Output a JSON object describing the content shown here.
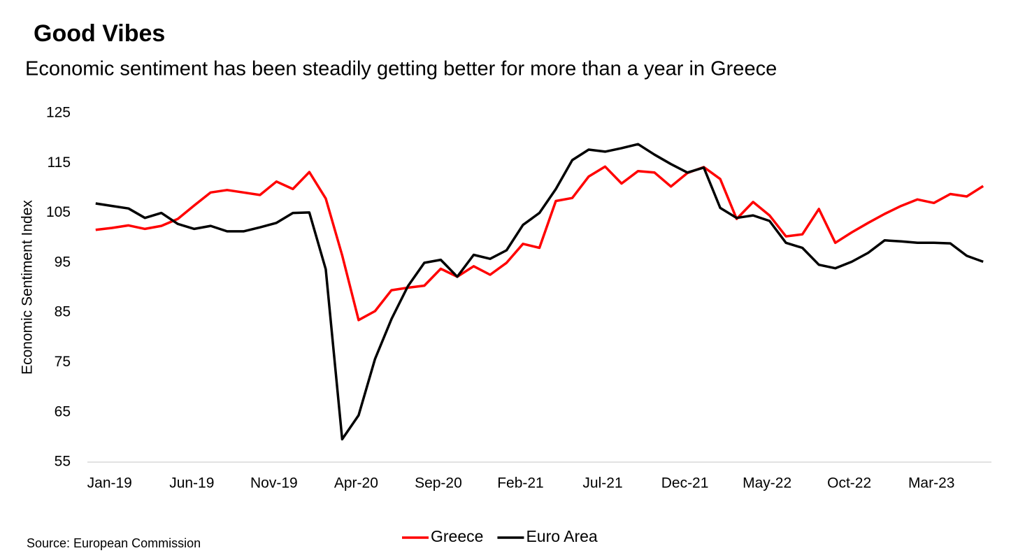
{
  "chart_data": {
    "type": "line",
    "title": "Good Vibes",
    "subtitle": "Economic sentiment has been steadily getting better for more than a year in Greece",
    "y_label": "Economic Sentiment Index",
    "source": "Source: European Commission",
    "categories": [
      "Jan-19",
      null,
      null,
      null,
      null,
      "Jun-19",
      null,
      null,
      null,
      null,
      "Nov-19",
      null,
      null,
      null,
      null,
      "Apr-20",
      null,
      null,
      null,
      null,
      "Sep-20",
      null,
      null,
      null,
      null,
      "Feb-21",
      null,
      null,
      null,
      null,
      "Jul-21",
      null,
      null,
      null,
      null,
      "Dec-21",
      null,
      null,
      null,
      null,
      "May-22",
      null,
      null,
      null,
      null,
      "Oct-22",
      null,
      null,
      null,
      null,
      "Mar-23",
      null,
      null,
      null,
      null
    ],
    "series": [
      {
        "name": "Greece",
        "color": "#ff0000",
        "values": [
          101.6,
          102.0,
          102.5,
          101.8,
          102.4,
          103.8,
          106.5,
          109.1,
          109.6,
          109.1,
          108.6,
          111.3,
          109.8,
          113.2,
          107.9,
          96.5,
          83.5,
          85.3,
          89.5,
          90.0,
          90.4,
          93.8,
          92.2,
          94.3,
          92.6,
          95.0,
          98.8,
          98.0,
          107.4,
          108.0,
          112.3,
          114.3,
          110.9,
          113.4,
          113.1,
          110.3,
          113.0,
          114.2,
          111.8,
          103.8,
          107.2,
          104.5,
          100.3,
          100.7,
          105.8,
          99.0,
          101.1,
          103.0,
          104.8,
          106.4,
          107.7,
          107.0,
          108.8,
          108.3,
          110.4
        ]
      },
      {
        "name": "Euro Area",
        "color": "#000000",
        "values": [
          106.9,
          106.4,
          105.9,
          104.0,
          105.0,
          102.8,
          101.8,
          102.4,
          101.3,
          101.3,
          102.1,
          103.0,
          105.0,
          105.1,
          93.7,
          59.6,
          64.4,
          75.7,
          83.7,
          90.3,
          95.0,
          95.6,
          92.2,
          96.6,
          95.8,
          97.5,
          102.6,
          105.0,
          109.8,
          115.6,
          117.7,
          117.3,
          118.0,
          118.8,
          116.7,
          114.8,
          113.1,
          114.1,
          106.0,
          104.0,
          104.5,
          103.4,
          99.0,
          98.0,
          94.6,
          93.9,
          95.2,
          97.0,
          99.5,
          99.3,
          99.0,
          99.0,
          98.9,
          96.4,
          95.2
        ]
      }
    ],
    "ylim": [
      55,
      125
    ],
    "yticks": [
      55,
      65,
      75,
      85,
      95,
      105,
      115,
      125
    ],
    "grid": false,
    "legend": "bottom"
  }
}
